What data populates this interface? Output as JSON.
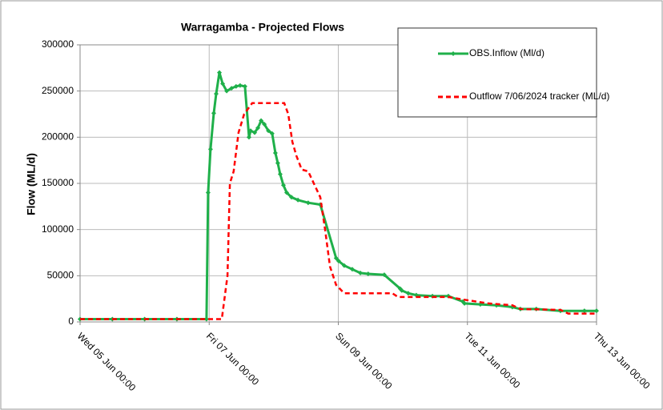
{
  "chart_data": {
    "type": "line",
    "title": "Warragamba - Projected Flows",
    "y_label": "Flow (ML/d)",
    "xlim": [
      0,
      192
    ],
    "xticks": [
      {
        "value": 0,
        "label": "Wed 05 Jun 00:00"
      },
      {
        "value": 48,
        "label": "Fri 07 Jun 00:00"
      },
      {
        "value": 96,
        "label": "Sun 09 Jun 00:00"
      },
      {
        "value": 144,
        "label": "Tue 11 Jun 00:00"
      },
      {
        "value": 192,
        "label": "Thu 13 Jun 00:00"
      }
    ],
    "ylim": [
      0,
      300000
    ],
    "yticks": [
      0,
      50000,
      100000,
      150000,
      200000,
      250000,
      300000
    ],
    "grid": true,
    "legend": "upper right",
    "series": [
      {
        "name": "OBS.Inflow (Ml/d)",
        "color": "#1fb04a",
        "markers": true,
        "x": [
          0,
          12,
          24,
          36,
          47,
          47.6,
          48.5,
          49.7,
          50.6,
          51.8,
          53.0,
          54.5,
          56.3,
          58.0,
          59.5,
          61.3,
          62.8,
          63.4,
          64.9,
          66.1,
          67.3,
          68.5,
          70.0,
          71.4,
          72.6,
          73.5,
          74.4,
          75.6,
          76.8,
          78.6,
          81.0,
          84.8,
          89.3,
          95.2,
          96.1,
          98.2,
          101.2,
          104.2,
          107.1,
          113.1,
          119.0,
          119.6,
          122.0,
          125.0,
          131.0,
          136.9,
          142.3,
          142.9,
          148.8,
          154.8,
          160.7,
          163.7,
          169.6,
          178.6,
          187.5,
          192
        ],
        "values": [
          3000,
          3000,
          3000,
          3000,
          3000,
          140000,
          187000,
          226000,
          247000,
          270000,
          258000,
          250000,
          253000,
          255000,
          256000,
          255000,
          200000,
          207000,
          205000,
          210000,
          218000,
          214000,
          207000,
          204000,
          183000,
          172000,
          160000,
          148000,
          140000,
          135000,
          132000,
          129000,
          127000,
          69000,
          66000,
          61000,
          57000,
          53000,
          52000,
          51000,
          36000,
          34000,
          31000,
          29000,
          28000,
          28000,
          22000,
          20000,
          19000,
          18000,
          16000,
          14000,
          14000,
          12000,
          12000,
          12000
        ]
      },
      {
        "name": "Outflow 7/06/2024 tracker (ML/d)",
        "color": "#ff0000",
        "dashed": true,
        "x": [
          0,
          52.7,
          54.8,
          55.7,
          57.1,
          58.9,
          61.0,
          64.0,
          75.9,
          77.4,
          78.9,
          80.4,
          82.4,
          84.8,
          86.9,
          89.3,
          91.1,
          92.9,
          95.2,
          98.2,
          116.1,
          118.2,
          136.9,
          142.9,
          151.8,
          160.7,
          163.7,
          178.6,
          181.5,
          192
        ],
        "values": [
          3000,
          3000,
          50000,
          150000,
          163000,
          205000,
          225000,
          237000,
          237000,
          225000,
          195000,
          180000,
          165000,
          163000,
          150000,
          135000,
          100000,
          60000,
          40000,
          31000,
          31000,
          27000,
          27000,
          24000,
          20000,
          18000,
          14000,
          13000,
          9000,
          9000
        ]
      }
    ]
  }
}
